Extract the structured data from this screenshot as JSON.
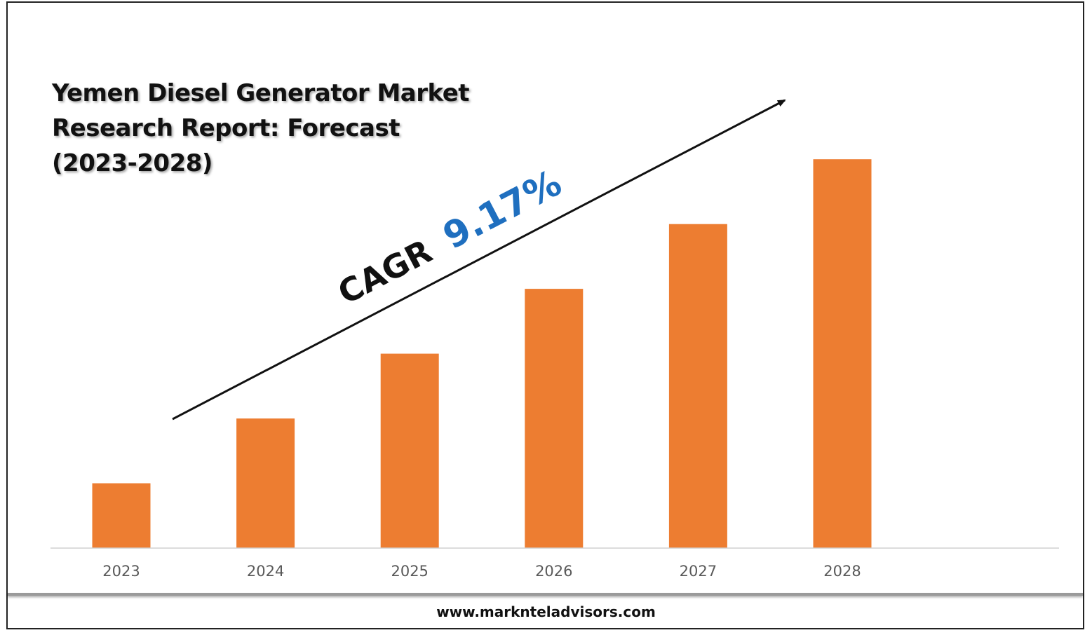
{
  "title_lines": [
    "Yemen Diesel Generator Market",
    "Research Report: Forecast",
    "(2023-2028)"
  ],
  "annotation": {
    "prefix": "CAGR",
    "value": "9.17%",
    "prefix_color": "#111111",
    "value_color": "#1f6fbf"
  },
  "footer": {
    "url": "www.marknteladvisors.com"
  },
  "colors": {
    "bar": "#ed7d31",
    "axis": "#d0d0d0",
    "tick_label": "#595959",
    "arrow": "#111111"
  },
  "chart_data": {
    "type": "bar",
    "categories": [
      "2023",
      "2024",
      "2025",
      "2026",
      "2027",
      "2028"
    ],
    "values": [
      1.0,
      2.0,
      3.0,
      4.0,
      5.0,
      6.0
    ],
    "ylim": [
      0,
      7.7
    ],
    "grid": false,
    "legend": "none",
    "title": "Yemen Diesel Generator Market Research Report: Forecast (2023-2028)",
    "xlabel": "",
    "ylabel": ""
  }
}
